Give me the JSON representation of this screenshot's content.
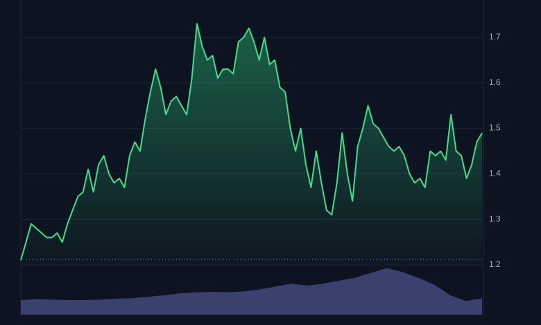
{
  "chart_data": [
    {
      "type": "area",
      "color": "#3ee08a",
      "categories": [
        null,
        null,
        null,
        null,
        null,
        null,
        null,
        null,
        null,
        null,
        null,
        null,
        null,
        null,
        null,
        null,
        null,
        null,
        null,
        null,
        null,
        null,
        null,
        null,
        null,
        null,
        null,
        null,
        null,
        null,
        null,
        null,
        null,
        null,
        null,
        null,
        null,
        null,
        null,
        null,
        null,
        null,
        null,
        null,
        null,
        null,
        null,
        null,
        null,
        null,
        null,
        null,
        null,
        null,
        null,
        null,
        null,
        null,
        null,
        null,
        null,
        null,
        null,
        null,
        null,
        null,
        null,
        null,
        null,
        null,
        null,
        null,
        null,
        null,
        null,
        null,
        null,
        null,
        null,
        null,
        null,
        null,
        null,
        null,
        null,
        null,
        null,
        null,
        null,
        null
      ],
      "values": [
        1.21,
        1.25,
        1.29,
        1.28,
        1.27,
        1.26,
        1.26,
        1.27,
        1.25,
        1.29,
        1.32,
        1.35,
        1.36,
        1.41,
        1.36,
        1.42,
        1.44,
        1.4,
        1.38,
        1.39,
        1.37,
        1.44,
        1.47,
        1.45,
        1.52,
        1.58,
        1.63,
        1.59,
        1.53,
        1.56,
        1.57,
        1.55,
        1.53,
        1.61,
        1.73,
        1.68,
        1.65,
        1.66,
        1.61,
        1.63,
        1.63,
        1.62,
        1.69,
        1.7,
        1.72,
        1.69,
        1.65,
        1.7,
        1.64,
        1.65,
        1.59,
        1.58,
        1.5,
        1.45,
        1.5,
        1.42,
        1.37,
        1.45,
        1.38,
        1.32,
        1.31,
        1.38,
        1.49,
        1.4,
        1.34,
        1.46,
        1.5,
        1.55,
        1.51,
        1.5,
        1.48,
        1.46,
        1.45,
        1.46,
        1.44,
        1.4,
        1.38,
        1.39,
        1.37,
        1.45,
        1.44,
        1.45,
        1.43,
        1.53,
        1.45,
        1.44,
        1.39,
        1.42,
        1.47,
        1.49
      ],
      "ylim": [
        1.2,
        1.782
      ],
      "yticks": [
        1.2,
        1.3,
        1.4,
        1.5,
        1.6,
        1.7
      ],
      "grid": true,
      "reference_line": 1.212
    },
    {
      "type": "volume",
      "color": "#3a416e",
      "categories": [
        null,
        null,
        null,
        null,
        null,
        null,
        null,
        null,
        null,
        null,
        null,
        null,
        null,
        null,
        null,
        null,
        null,
        null,
        null,
        null,
        null,
        null,
        null,
        null,
        null,
        null,
        null,
        null,
        null,
        null
      ],
      "values": [
        30,
        32,
        31,
        30,
        30,
        31,
        33,
        34,
        37,
        40,
        44,
        46,
        47,
        46,
        48,
        52,
        58,
        64,
        60,
        64,
        70,
        76,
        86,
        96,
        88,
        76,
        62,
        40,
        28,
        34
      ],
      "ylim": [
        0,
        100
      ]
    }
  ]
}
